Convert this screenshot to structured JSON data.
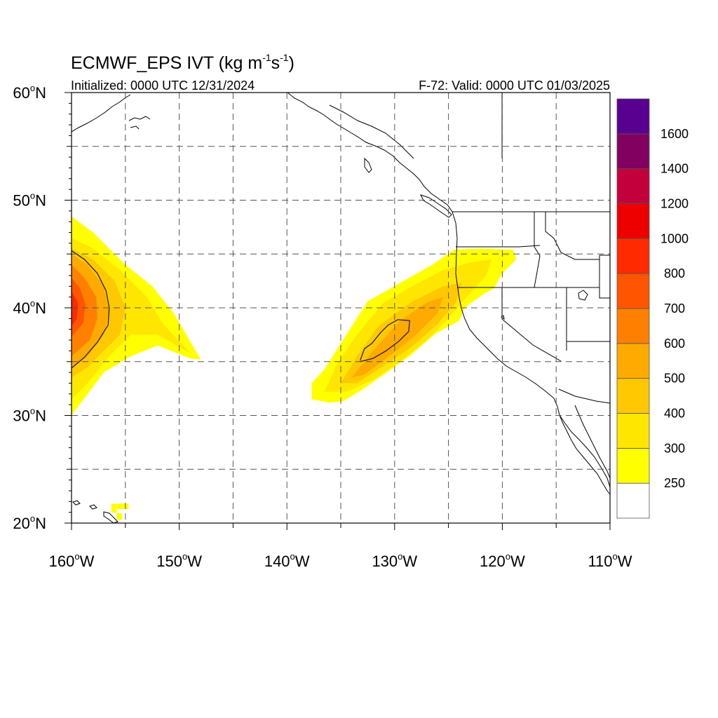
{
  "header": {
    "title_main": "ECMWF_EPS IVT (kg m",
    "title_exp1": "-1",
    "title_mid": "s",
    "title_exp2": "-1",
    "title_end": ")",
    "initialized": "Initialized: 0000 UTC 12/31/2024",
    "valid": "F-72: Valid: 0000 UTC 01/03/2025"
  },
  "map": {
    "lon_range": [
      -160,
      -110
    ],
    "lat_range": [
      20,
      60
    ],
    "grid": "dashed every 5 degrees",
    "lat_labels": [
      {
        "lat": 60,
        "deg": "60",
        "hem": "N"
      },
      {
        "lat": 50,
        "deg": "50",
        "hem": "N"
      },
      {
        "lat": 40,
        "deg": "40",
        "hem": "N"
      },
      {
        "lat": 30,
        "deg": "30",
        "hem": "N"
      },
      {
        "lat": 20,
        "deg": "20",
        "hem": "N"
      }
    ],
    "lon_labels": [
      {
        "lon": -160,
        "deg": "160",
        "hem": "W"
      },
      {
        "lon": -150,
        "deg": "150",
        "hem": "W"
      },
      {
        "lon": -140,
        "deg": "140",
        "hem": "W"
      },
      {
        "lon": -130,
        "deg": "130",
        "hem": "W"
      },
      {
        "lon": -120,
        "deg": "120",
        "hem": "W"
      },
      {
        "lon": -110,
        "deg": "110",
        "hem": "W"
      }
    ],
    "ivt_features": [
      {
        "name": "western-atmospheric-river",
        "bands": [
          {
            "value": 250,
            "polygon": [
              [
                -160,
                45
              ],
              [
                -160,
                48.5
              ],
              [
                -158,
                47
              ],
              [
                -155,
                44
              ],
              [
                -152.5,
                42
              ],
              [
                -150.5,
                39.5
              ],
              [
                -148,
                35.2
              ],
              [
                -149,
                35.3
              ],
              [
                -152,
                36.5
              ],
              [
                -154.5,
                35.5
              ],
              [
                -157,
                34
              ],
              [
                -158.5,
                32
              ],
              [
                -160,
                30
              ]
            ]
          },
          {
            "value": 300,
            "polygon": [
              [
                -160,
                46.5
              ],
              [
                -158,
                45.5
              ],
              [
                -155.5,
                43.5
              ],
              [
                -153,
                41
              ],
              [
                -151.5,
                38.5
              ],
              [
                -149,
                35.8
              ],
              [
                -152,
                37.5
              ],
              [
                -154.5,
                37.5
              ],
              [
                -156.5,
                35.5
              ],
              [
                -158.5,
                33
              ],
              [
                -160,
                31.5
              ]
            ]
          },
          {
            "value": 400,
            "polygon": [
              [
                -160,
                45.5
              ],
              [
                -158,
                44.5
              ],
              [
                -156,
                42.5
              ],
              [
                -155,
                40
              ],
              [
                -155.5,
                37.5
              ],
              [
                -157,
                36
              ],
              [
                -158.5,
                34.5
              ],
              [
                -160,
                33.5
              ]
            ]
          },
          {
            "value": 500,
            "polygon": [
              [
                -160,
                45
              ],
              [
                -158.5,
                44
              ],
              [
                -157,
                42
              ],
              [
                -156.5,
                39.5
              ],
              [
                -157,
                37.5
              ],
              [
                -158.5,
                35.5
              ],
              [
                -160,
                34.5
              ]
            ]
          },
          {
            "value": 600,
            "polygon": [
              [
                -160,
                44
              ],
              [
                -158.8,
                42.8
              ],
              [
                -157.7,
                41
              ],
              [
                -157.6,
                39
              ],
              [
                -158.3,
                37
              ],
              [
                -160,
                35.5
              ]
            ]
          },
          {
            "value": 700,
            "polygon": [
              [
                -160,
                42.8
              ],
              [
                -159.2,
                41.8
              ],
              [
                -158.7,
                40.3
              ],
              [
                -158.9,
                38.6
              ],
              [
                -160,
                37.3
              ]
            ]
          },
          {
            "value": 800,
            "polygon": [
              [
                -160,
                41.5
              ],
              [
                -159.4,
                40.5
              ],
              [
                -159.5,
                39
              ],
              [
                -160,
                38.3
              ]
            ]
          }
        ],
        "contour_value": 500,
        "contour": [
          [
            -160,
            45.3
          ],
          [
            -158.8,
            44.5
          ],
          [
            -157.6,
            43.2
          ],
          [
            -156.8,
            41.6
          ],
          [
            -156.5,
            40
          ],
          [
            -156.6,
            38.4
          ],
          [
            -157.6,
            36.8
          ],
          [
            -158.8,
            35.4
          ],
          [
            -160,
            34.4
          ]
        ]
      },
      {
        "name": "eastern-atmospheric-river",
        "bands": [
          {
            "value": 250,
            "polygon": [
              [
                -137.7,
                31.5
              ],
              [
                -137.7,
                33
              ],
              [
                -136.5,
                34.3
              ],
              [
                -134.8,
                37
              ],
              [
                -132.5,
                40.6
              ],
              [
                -129,
                42.6
              ],
              [
                -126.5,
                44
              ],
              [
                -124.5,
                45.4
              ],
              [
                -122,
                45.5
              ],
              [
                -119,
                45.4
              ],
              [
                -118.7,
                44.5
              ],
              [
                -120,
                43.2
              ],
              [
                -120.8,
                41.8
              ],
              [
                -121.7,
                41.3
              ],
              [
                -123.5,
                40
              ],
              [
                -124,
                38.8
              ],
              [
                -126.2,
                37.6
              ],
              [
                -128.5,
                35.6
              ],
              [
                -131,
                33.8
              ],
              [
                -133,
                32.4
              ],
              [
                -134.8,
                31.3
              ],
              [
                -136,
                31.2
              ]
            ]
          },
          {
            "value": 300,
            "polygon": [
              [
                -136.5,
                32.2
              ],
              [
                -135.5,
                34.5
              ],
              [
                -133.5,
                37.5
              ],
              [
                -131,
                40.5
              ],
              [
                -128,
                42.2
              ],
              [
                -125.5,
                43.5
              ],
              [
                -123,
                44.2
              ],
              [
                -121,
                44.5
              ],
              [
                -121.5,
                43
              ],
              [
                -123.5,
                40.8
              ],
              [
                -125,
                39
              ],
              [
                -127,
                37
              ],
              [
                -129.5,
                35
              ],
              [
                -132,
                33.3
              ],
              [
                -134.5,
                32.2
              ]
            ]
          },
          {
            "value": 400,
            "polygon": [
              [
                -135,
                33
              ],
              [
                -133.5,
                35.5
              ],
              [
                -131.5,
                38.3
              ],
              [
                -128.5,
                40.5
              ],
              [
                -125.5,
                42
              ],
              [
                -123.8,
                42.3
              ],
              [
                -124.3,
                40.5
              ],
              [
                -126,
                38.5
              ],
              [
                -128.5,
                36.3
              ],
              [
                -131.5,
                34.3
              ],
              [
                -133.5,
                33
              ]
            ]
          },
          {
            "value": 500,
            "polygon": [
              [
                -134,
                33.5
              ],
              [
                -132,
                36
              ],
              [
                -129.5,
                38.8
              ],
              [
                -127,
                40.5
              ],
              [
                -125.5,
                41
              ],
              [
                -126,
                39.5
              ],
              [
                -128,
                37.5
              ],
              [
                -130.5,
                35.5
              ],
              [
                -132.8,
                33.8
              ]
            ]
          }
        ],
        "contour_value": 600,
        "contour": [
          [
            -133.2,
            35.1
          ],
          [
            -132.8,
            36.2
          ],
          [
            -132.1,
            36.7
          ],
          [
            -131.3,
            37.7
          ],
          [
            -130.6,
            38.4
          ],
          [
            -129.7,
            38.9
          ],
          [
            -128.6,
            38.8
          ],
          [
            -128.7,
            37.8
          ],
          [
            -129.6,
            36.9
          ],
          [
            -130.8,
            36
          ],
          [
            -132,
            35.3
          ],
          [
            -133.2,
            35
          ]
        ]
      },
      {
        "name": "hawaii-speck",
        "bands": [
          {
            "value": 250,
            "polygon": [
              [
                -156.3,
                21.8
              ],
              [
                -154.7,
                21.8
              ],
              [
                -154.7,
                21.3
              ],
              [
                -155.8,
                21.3
              ],
              [
                -155.8,
                20.3
              ],
              [
                -155.3,
                20.3
              ],
              [
                -155.3,
                20.9
              ],
              [
                -156.3,
                21
              ]
            ]
          }
        ]
      }
    ]
  },
  "colorbar": {
    "levels": [
      {
        "label": "250",
        "color": "#ffffff"
      },
      {
        "label": "300",
        "color": "#ffff00"
      },
      {
        "label": "400",
        "color": "#ffe600"
      },
      {
        "label": "500",
        "color": "#ffc800"
      },
      {
        "label": "600",
        "color": "#ffaa00"
      },
      {
        "label": "700",
        "color": "#ff8000"
      },
      {
        "label": "800",
        "color": "#ff5500"
      },
      {
        "label": "1000",
        "color": "#ff2a00"
      },
      {
        "label": "1200",
        "color": "#ee0000"
      },
      {
        "label": "1400",
        "color": "#c4003c"
      },
      {
        "label": "1600",
        "color": "#820060"
      },
      {
        "label": "",
        "color": "#5a0090"
      }
    ],
    "top_color": "#5a0090"
  },
  "colors": {
    "coast": "#000000",
    "grid": "#555555",
    "contour": "#222222"
  }
}
